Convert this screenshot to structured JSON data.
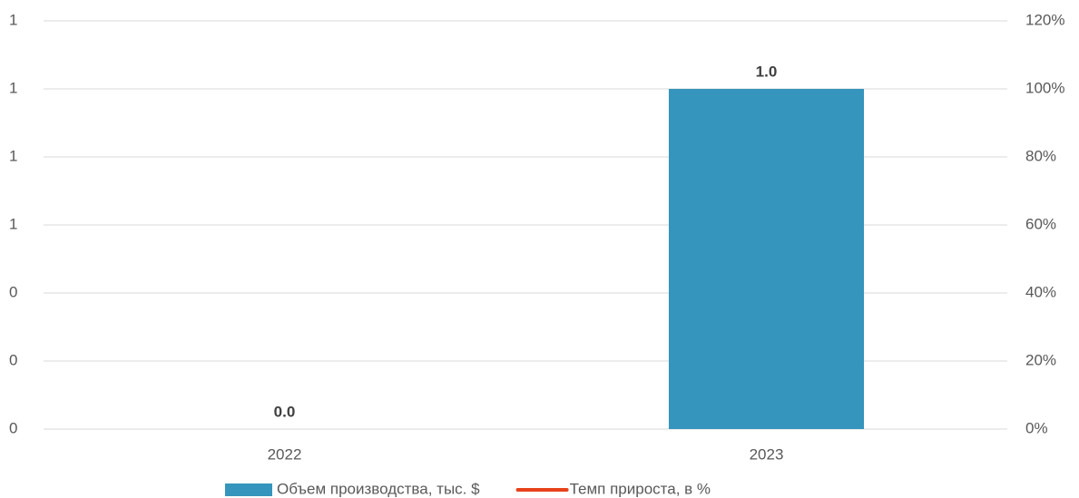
{
  "chart_data": {
    "type": "bar",
    "categories": [
      "2022",
      "2023"
    ],
    "series": [
      {
        "name": "Объем производства, тыс. $",
        "color": "#3595bc",
        "type": "bar",
        "values": [
          0.0,
          1.0
        ],
        "value_labels": [
          "0.0",
          "1.0"
        ]
      },
      {
        "name": "Темп прироста, в %",
        "color": "#e8421a",
        "type": "line",
        "axis": "y2",
        "values": [
          null,
          null
        ]
      }
    ],
    "ylim": [
      0,
      1.2
    ],
    "yticks": [
      0,
      {
        "value": 0.2,
        "label": "0"
      },
      {
        "value": 0.4,
        "label": "0"
      },
      {
        "value": 0.6,
        "label": "1"
      },
      {
        "value": 0.8,
        "label": "1"
      },
      1,
      {
        "value": 1.2,
        "label": "1"
      }
    ],
    "y2lim": [
      0,
      120
    ],
    "y2ticks": [
      {
        "value": 0,
        "label": "0%"
      },
      {
        "value": 20,
        "label": "20%"
      },
      {
        "value": 40,
        "label": "40%"
      },
      {
        "value": 60,
        "label": "60%"
      },
      {
        "value": 80,
        "label": "80%"
      },
      {
        "value": 100,
        "label": "100%"
      },
      {
        "value": 120,
        "label": "120%"
      }
    ],
    "grid": true,
    "legend": "bottom"
  }
}
